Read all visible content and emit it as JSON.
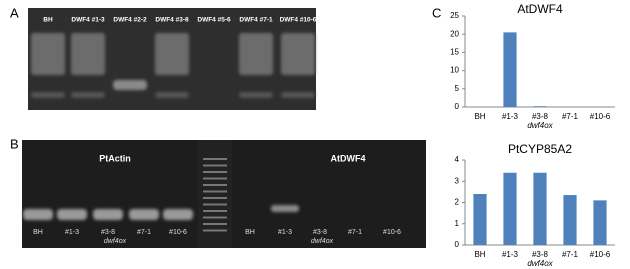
{
  "panel_labels": [
    "A",
    "B",
    "C"
  ],
  "gel_a": {
    "lanes": [
      "BH",
      "DWF4 #1-3",
      "DWF4 #2-2",
      "DWF4 #3-8",
      "DWF4 #5-6",
      "DWF4 #7-1",
      "DWF4 #10-6"
    ]
  },
  "gel_b": {
    "left_title": "PtActin",
    "right_title": "AtDWF4",
    "left_lanes": [
      "BH",
      "#1-3",
      "#3-8",
      "#7-1",
      "#10-6"
    ],
    "left_group": "dwf4ox",
    "right_lanes": [
      "BH",
      "#1-3",
      "#3-8",
      "#7-1",
      "#10-6"
    ],
    "right_group": "dwf4ox"
  },
  "chart_data": [
    {
      "type": "bar",
      "title": "AtDWF4",
      "categories": [
        "BH",
        "#1-3",
        "#3-8",
        "#7-1",
        "#10-6"
      ],
      "values": [
        0,
        20.5,
        0.2,
        0,
        0
      ],
      "color": "#4f81bd",
      "xlabel": "dwf4ox",
      "ylim": [
        0,
        25
      ],
      "yticks": [
        0,
        5,
        10,
        15,
        20,
        25
      ]
    },
    {
      "type": "bar",
      "title": "PtCYP85A2",
      "categories": [
        "BH",
        "#1-3",
        "#3-8",
        "#7-1",
        "#10-6"
      ],
      "values": [
        2.4,
        3.4,
        3.4,
        2.35,
        2.1
      ],
      "color": "#4f81bd",
      "xlabel": "dwf4ox",
      "ylim": [
        0,
        4
      ],
      "yticks": [
        0,
        1,
        2,
        3,
        4
      ]
    }
  ]
}
